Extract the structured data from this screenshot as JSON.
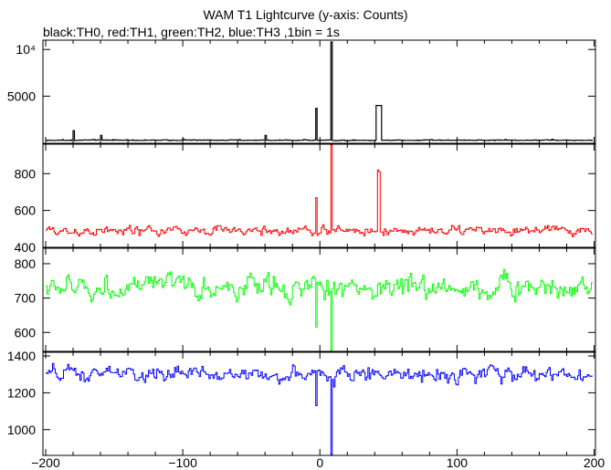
{
  "title": "WAM T1 Lightcurve (y-axis: Counts)",
  "subtitle": "black:TH0, red:TH1, green:TH2, blue:TH3 ,1bin = 1s",
  "chart_data": {
    "type": "line",
    "title": "WAM T1 Lightcurve (y-axis: Counts)",
    "subtitle": "black:TH0, red:TH1, green:TH2, blue:TH3 ,1bin = 1s",
    "x": {
      "range": [
        -202,
        201
      ],
      "ticks": [
        -200,
        -100,
        0,
        100,
        200
      ],
      "tick_labels": [
        "−200",
        "−100",
        "0",
        "100",
        "200"
      ],
      "bin_width": 1
    },
    "panels": [
      {
        "name": "TH0",
        "color": "#000000",
        "ylim": [
          -50,
          11000
        ],
        "yticks": [
          5000,
          10000
        ],
        "ytick_labels": [
          "5000",
          "10⁴"
        ],
        "baseline": 280,
        "noise": 30,
        "dips": [],
        "peaks": [
          {
            "x": -180,
            "y": 1300
          },
          {
            "x": -160,
            "y": 800
          },
          {
            "x": -40,
            "y": 800
          },
          {
            "x": -3,
            "y": 3700
          },
          {
            "x": 8,
            "y": 10800
          },
          {
            "x": 41,
            "y": 4000
          },
          {
            "x": 42,
            "y": 4000
          },
          {
            "x": 43,
            "y": 4000
          },
          {
            "x": 44,
            "y": 4000
          }
        ]
      },
      {
        "name": "TH1",
        "color": "#ff0000",
        "ylim": [
          400,
          960
        ],
        "yticks": [
          400,
          600,
          800
        ],
        "ytick_labels": [
          "400",
          "600",
          "800"
        ],
        "baseline": 490,
        "noise": 22,
        "dips": [],
        "peaks": [
          {
            "x": -3,
            "y": 670
          },
          {
            "x": 8,
            "y": 960
          },
          {
            "x": 42,
            "y": 820
          },
          {
            "x": 43,
            "y": 810
          }
        ]
      },
      {
        "name": "TH2",
        "color": "#00ff00",
        "ylim": [
          545,
          845
        ],
        "yticks": [
          600,
          700,
          800
        ],
        "ytick_labels": [
          "600",
          "700",
          "800"
        ],
        "baseline": 730,
        "noise": 28,
        "peaks": [],
        "dips": [
          {
            "x": -3,
            "y": 615
          },
          {
            "x": 8,
            "y": 545
          }
        ]
      },
      {
        "name": "TH3",
        "color": "#0000ff",
        "ylim": [
          860,
          1420
        ],
        "yticks": [
          1000,
          1200,
          1400
        ],
        "ytick_labels": [
          "1000",
          "1200",
          "1400"
        ],
        "baseline": 1300,
        "noise": 35,
        "peaks": [],
        "dips": [
          {
            "x": -3,
            "y": 1130
          },
          {
            "x": 8,
            "y": 860
          }
        ]
      }
    ]
  }
}
